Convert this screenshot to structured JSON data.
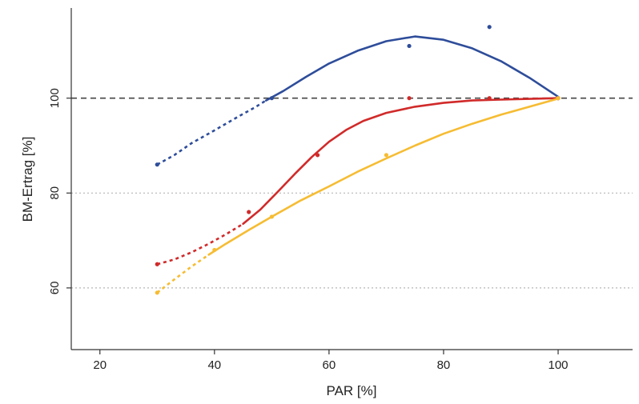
{
  "chart_data": {
    "type": "line",
    "title": "",
    "xlabel": "PAR [%]",
    "ylabel": "BM-Ertrag [%]",
    "xlim": [
      15,
      113
    ],
    "ylim": [
      47,
      119
    ],
    "x_ticks": [
      20,
      40,
      60,
      80,
      100
    ],
    "y_ticks": [
      60,
      80,
      100
    ],
    "reference_line": {
      "y": 100,
      "style": "dashed",
      "color": "#444444"
    },
    "grid": {
      "horizontal": "dotted at 60 and 80",
      "vertical": false
    },
    "legend": "none",
    "series": [
      {
        "color": "#2e4d9a",
        "points": [
          [
            30,
            86
          ],
          [
            50,
            100
          ],
          [
            74,
            111
          ],
          [
            88,
            115
          ],
          [
            100,
            100
          ]
        ],
        "curve_dashed": [
          [
            30,
            86
          ],
          [
            33,
            88
          ],
          [
            36,
            90.5
          ],
          [
            40,
            93.2
          ],
          [
            44,
            96
          ],
          [
            47,
            98
          ],
          [
            49,
            99.5
          ]
        ],
        "curve_solid": [
          [
            49,
            99.5
          ],
          [
            52,
            101.5
          ],
          [
            56,
            104.5
          ],
          [
            60,
            107.3
          ],
          [
            65,
            110
          ],
          [
            70,
            112
          ],
          [
            75,
            113
          ],
          [
            80,
            112.3
          ],
          [
            85,
            110.5
          ],
          [
            90,
            107.8
          ],
          [
            95,
            104.3
          ],
          [
            100,
            100.3
          ]
        ]
      },
      {
        "color": "#d12a2a",
        "points": [
          [
            30,
            65
          ],
          [
            46,
            76
          ],
          [
            58,
            88
          ],
          [
            74,
            100
          ],
          [
            88,
            100
          ],
          [
            100,
            100
          ]
        ],
        "curve_dashed": [
          [
            30,
            65
          ],
          [
            33,
            66
          ],
          [
            36,
            67.5
          ],
          [
            39,
            69.3
          ],
          [
            42,
            71.3
          ],
          [
            45,
            73.5
          ]
        ],
        "curve_solid": [
          [
            45,
            73.5
          ],
          [
            48,
            76.5
          ],
          [
            51,
            80.2
          ],
          [
            54,
            84
          ],
          [
            57,
            87.6
          ],
          [
            60,
            90.8
          ],
          [
            63,
            93.3
          ],
          [
            66,
            95.2
          ],
          [
            70,
            96.9
          ],
          [
            75,
            98.2
          ],
          [
            80,
            99
          ],
          [
            85,
            99.5
          ],
          [
            90,
            99.7
          ],
          [
            95,
            99.85
          ],
          [
            100,
            100
          ]
        ]
      },
      {
        "color": "#f6bc32",
        "points": [
          [
            30,
            59
          ],
          [
            40,
            68
          ],
          [
            50,
            75
          ],
          [
            70,
            88
          ],
          [
            100,
            100
          ]
        ],
        "curve_dashed": [
          [
            30,
            59
          ],
          [
            33,
            61.8
          ],
          [
            36,
            64.5
          ],
          [
            39,
            67
          ]
        ],
        "curve_solid": [
          [
            39,
            67
          ],
          [
            42,
            69.3
          ],
          [
            46,
            72.2
          ],
          [
            50,
            75
          ],
          [
            55,
            78.4
          ],
          [
            60,
            81.4
          ],
          [
            65,
            84.5
          ],
          [
            70,
            87.3
          ],
          [
            75,
            90
          ],
          [
            80,
            92.5
          ],
          [
            85,
            94.6
          ],
          [
            90,
            96.5
          ],
          [
            95,
            98.2
          ],
          [
            100,
            99.9
          ]
        ]
      }
    ]
  }
}
